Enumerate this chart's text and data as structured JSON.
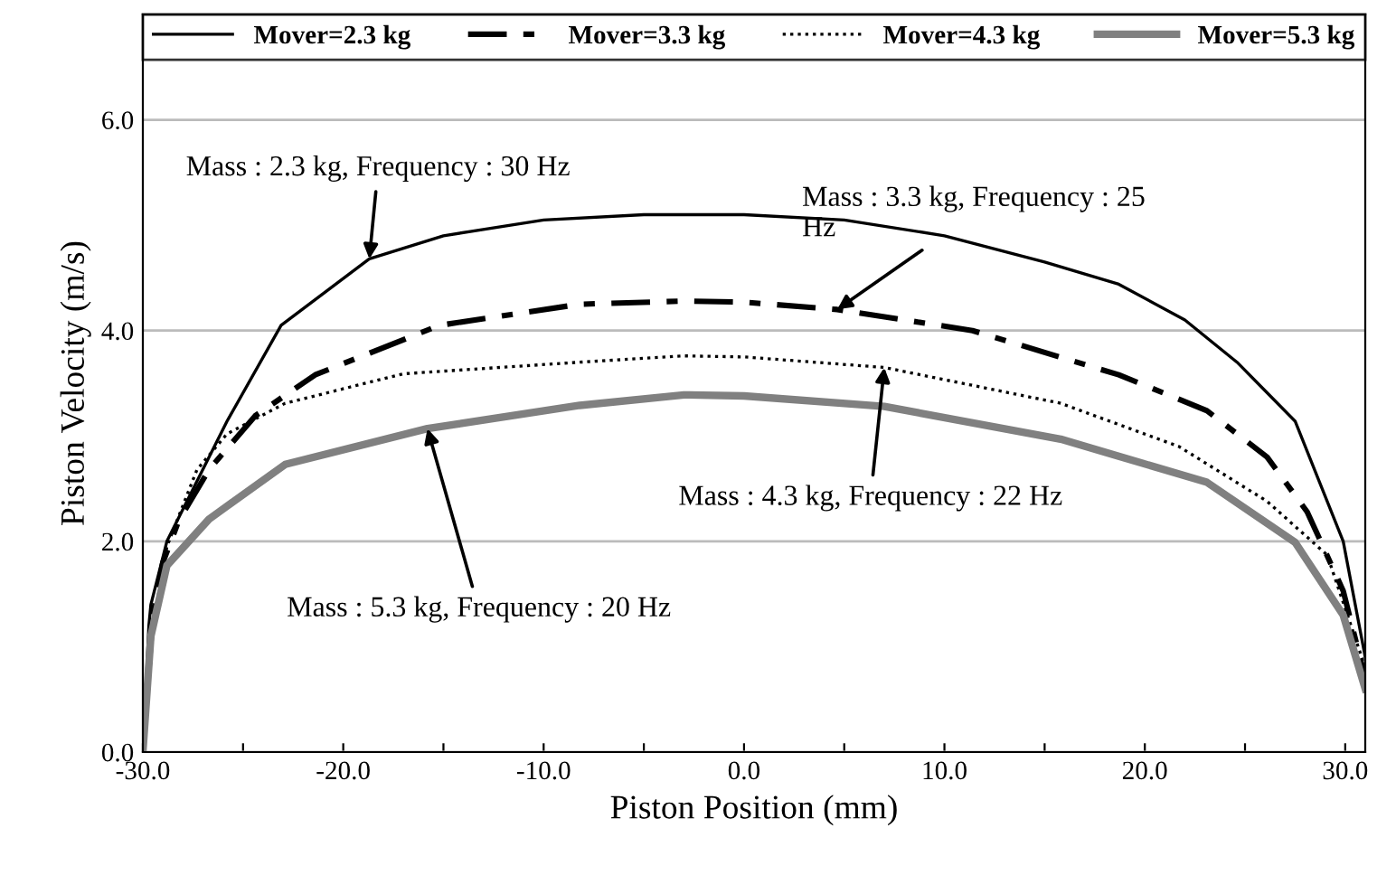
{
  "chart_data": {
    "type": "line",
    "xlabel": "Piston Position (mm)",
    "ylabel": "Piston Velocity (m/s)",
    "xlim": [
      -30,
      31
    ],
    "ylim": [
      0,
      7
    ],
    "xticks": [
      {
        "value": -30,
        "label": "-30.0"
      },
      {
        "value": -25,
        "label": null
      },
      {
        "value": -20,
        "label": "-20.0"
      },
      {
        "value": -15,
        "label": null
      },
      {
        "value": -10,
        "label": "-10.0"
      },
      {
        "value": -5,
        "label": null
      },
      {
        "value": 0,
        "label": "0.0"
      },
      {
        "value": 5,
        "label": null
      },
      {
        "value": 10,
        "label": "10.0"
      },
      {
        "value": 15,
        "label": null
      },
      {
        "value": 20,
        "label": "20.0"
      },
      {
        "value": 25,
        "label": null
      },
      {
        "value": 30,
        "label": "30.0"
      }
    ],
    "yticks": [
      {
        "value": 0,
        "label": "0.0"
      },
      {
        "value": 2,
        "label": "2.0"
      },
      {
        "value": 4,
        "label": "4.0"
      },
      {
        "value": 6,
        "label": "6.0"
      }
    ],
    "grid": "y",
    "legend": "top",
    "marker": "none",
    "series": [
      {
        "name": "Mover=2.3 kg",
        "color": "#000000",
        "line_style": "solid",
        "x": [
          -30,
          -29.7,
          -29.6,
          -28.8,
          -25.8,
          -23.1,
          -18.7,
          -15,
          -10,
          -5,
          0,
          5,
          10,
          15,
          18.7,
          22,
          24.6,
          27.5,
          29.9,
          31
        ],
        "values": [
          0,
          1.2,
          1.4,
          2.0,
          3.14,
          4.05,
          4.68,
          4.9,
          5.05,
          5.1,
          5.1,
          5.05,
          4.9,
          4.65,
          4.44,
          4.1,
          3.7,
          3.14,
          2.0,
          0.9
        ]
      },
      {
        "name": "Mover=3.3 kg",
        "color": "#000000",
        "line_style": "dashed",
        "x": [
          -30,
          -29.5,
          -29,
          -28.2,
          -26.7,
          -24.4,
          -21.4,
          -15.2,
          -8.2,
          -3,
          0,
          4.65,
          11.4,
          18.7,
          23.1,
          26.1,
          28.1,
          29.9,
          31
        ],
        "values": [
          0,
          1.3,
          1.8,
          2.2,
          2.68,
          3.19,
          3.58,
          4.05,
          4.25,
          4.28,
          4.27,
          4.2,
          4.0,
          3.58,
          3.24,
          2.8,
          2.28,
          1.53,
          0.7
        ]
      },
      {
        "name": "Mover=4.3 kg",
        "color": "#000000",
        "line_style": "dotted",
        "x": [
          -30,
          -29.5,
          -28.8,
          -27.3,
          -25.8,
          -22.9,
          -17,
          -8.2,
          -3,
          0,
          7,
          15.8,
          21.7,
          26.1,
          29.1,
          31
        ],
        "values": [
          0,
          1.2,
          1.95,
          2.68,
          3.02,
          3.31,
          3.59,
          3.7,
          3.76,
          3.75,
          3.65,
          3.31,
          2.9,
          2.38,
          1.87,
          0.8
        ]
      },
      {
        "name": "Mover=5.3 kg",
        "color": "#808080",
        "line_style": "solid",
        "x": [
          -30,
          -29.6,
          -28.8,
          -26.7,
          -22.9,
          -15.8,
          -8.2,
          -3,
          0,
          7,
          15.8,
          23.1,
          27.5,
          29.9,
          31
        ],
        "values": [
          0,
          1.1,
          1.77,
          2.21,
          2.73,
          3.07,
          3.29,
          3.39,
          3.38,
          3.28,
          2.97,
          2.56,
          1.99,
          1.3,
          0.6
        ]
      }
    ],
    "annotations": [
      {
        "text": "Mass : 2.3 kg, Frequency : 30 Hz",
        "x": -18.7,
        "y": 4.68
      },
      {
        "text": "Mass : 3.3 kg, Frequency : 25\nHz",
        "x": 4.65,
        "y": 4.2
      },
      {
        "text": "Mass : 4.3 kg, Frequency : 22 Hz",
        "x": 7,
        "y": 3.65
      },
      {
        "text": "Mass : 5.3 kg, Frequency : 20 Hz",
        "x": -15.8,
        "y": 3.07
      }
    ]
  }
}
